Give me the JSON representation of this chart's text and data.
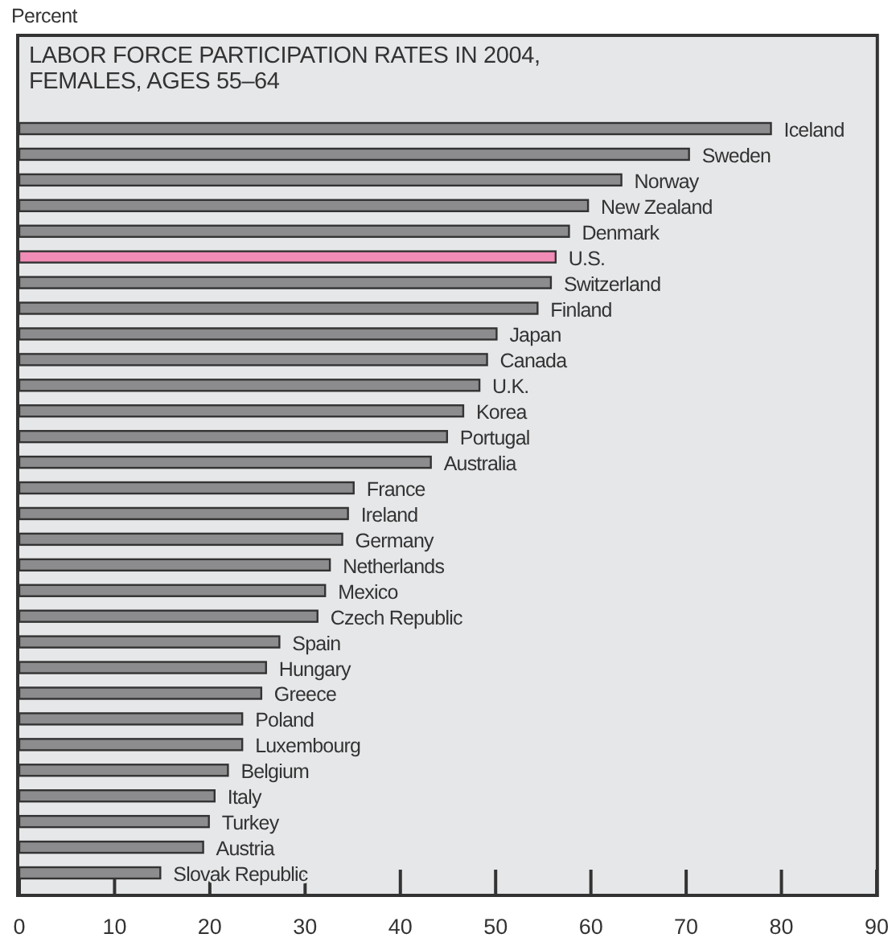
{
  "chart_data": {
    "type": "bar",
    "orientation": "horizontal",
    "title": "LABOR FORCE PARTICIPATION RATES IN 2004, FEMALES, AGES 55–64",
    "annotations": [
      "Percent"
    ],
    "categories": [
      "Iceland",
      "Sweden",
      "Norway",
      "New Zealand",
      "Denmark",
      "U.S.",
      "Switzerland",
      "Finland",
      "Japan",
      "Canada",
      "U.K.",
      "Korea",
      "Portugal",
      "Australia",
      "France",
      "Ireland",
      "Germany",
      "Netherlands",
      "Mexico",
      "Czech Republic",
      "Spain",
      "Hungary",
      "Greece",
      "Poland",
      "Luxembourg",
      "Belgium",
      "Italy",
      "Turkey",
      "Austria",
      "Slovak Republic"
    ],
    "values": [
      78.9,
      70.3,
      63.2,
      59.7,
      57.7,
      56.3,
      55.8,
      54.4,
      50.1,
      49.1,
      48.3,
      46.6,
      44.9,
      43.2,
      35.1,
      34.5,
      33.9,
      32.6,
      32.1,
      31.3,
      27.3,
      25.9,
      25.4,
      23.4,
      23.4,
      21.9,
      20.5,
      19.9,
      19.3,
      14.8
    ],
    "colors": [
      "#8c8c8e",
      "#8c8c8e",
      "#8c8c8e",
      "#8c8c8e",
      "#8c8c8e",
      "#f08cb6",
      "#8c8c8e",
      "#8c8c8e",
      "#8c8c8e",
      "#8c8c8e",
      "#8c8c8e",
      "#8c8c8e",
      "#8c8c8e",
      "#8c8c8e",
      "#8c8c8e",
      "#8c8c8e",
      "#8c8c8e",
      "#8c8c8e",
      "#8c8c8e",
      "#8c8c8e",
      "#8c8c8e",
      "#8c8c8e",
      "#8c8c8e",
      "#8c8c8e",
      "#8c8c8e",
      "#8c8c8e",
      "#8c8c8e",
      "#8c8c8e",
      "#8c8c8e",
      "#8c8c8e"
    ],
    "xlim": [
      0,
      90
    ],
    "xticks": [
      0,
      10,
      20,
      30,
      40,
      50,
      60,
      70,
      80,
      90
    ]
  }
}
